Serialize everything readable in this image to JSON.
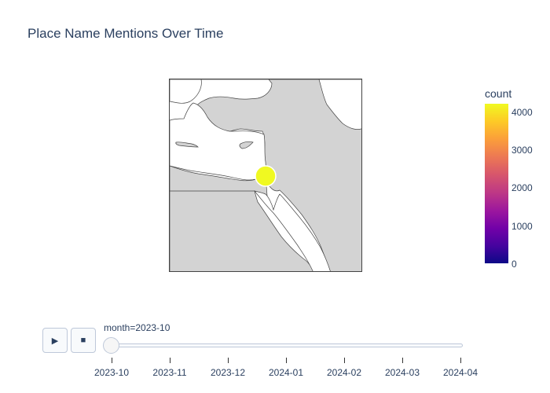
{
  "title": "Place Name Mentions Over Time",
  "map": {
    "land_color": "#d3d3d3",
    "water_color": "#ffffff",
    "marker": {
      "color": "#f0f921",
      "border_color": "#ffffff",
      "value_fraction": 1.0
    }
  },
  "colorbar": {
    "title": "count",
    "colorscale": "Plasma",
    "ticks": [
      "4000",
      "3000",
      "2000",
      "1000",
      "0"
    ]
  },
  "controls": {
    "play_icon": "▶",
    "stop_icon": "■"
  },
  "slider": {
    "label": "month=2023-10",
    "ticks": [
      "2023-10",
      "2023-11",
      "2023-12",
      "2024-01",
      "2024-02",
      "2024-03",
      "2024-04"
    ],
    "selected_index": 0
  }
}
